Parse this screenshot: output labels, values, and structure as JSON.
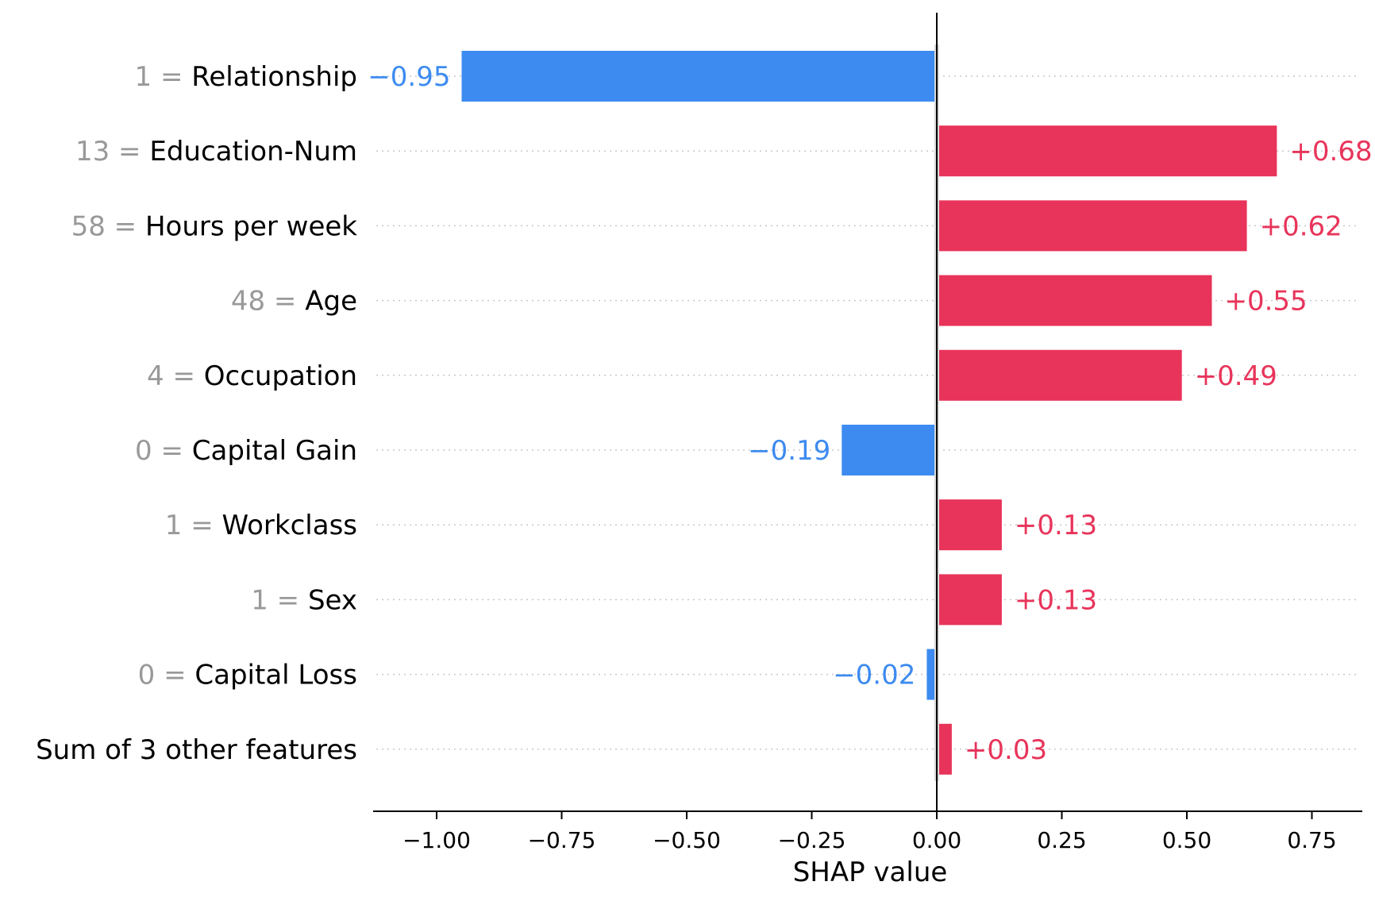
{
  "chart_data": {
    "type": "bar",
    "orientation": "horizontal",
    "xlabel": "SHAP value",
    "xlim": [
      -1.1,
      0.85
    ],
    "xticks": [
      -1.0,
      -0.75,
      -0.5,
      -0.25,
      0.0,
      0.25,
      0.5,
      0.75
    ],
    "xtick_labels": [
      "−1.00",
      "−0.75",
      "−0.50",
      "−0.25",
      "0.00",
      "0.25",
      "0.50",
      "0.75"
    ],
    "grid": "dotted horizontal guides per row",
    "colors": {
      "positive": "#e8345a",
      "negative": "#3d8bf0",
      "feature_value": "#999999"
    },
    "features": [
      {
        "value": "1",
        "name": "Relationship",
        "shap": -0.95,
        "label": "−0.95"
      },
      {
        "value": "13",
        "name": "Education-Num",
        "shap": 0.68,
        "label": "+0.68"
      },
      {
        "value": "58",
        "name": "Hours per week",
        "shap": 0.62,
        "label": "+0.62"
      },
      {
        "value": "48",
        "name": "Age",
        "shap": 0.55,
        "label": "+0.55"
      },
      {
        "value": "4",
        "name": "Occupation",
        "shap": 0.49,
        "label": "+0.49"
      },
      {
        "value": "0",
        "name": "Capital Gain",
        "shap": -0.19,
        "label": "−0.19"
      },
      {
        "value": "1",
        "name": "Workclass",
        "shap": 0.13,
        "label": "+0.13"
      },
      {
        "value": "1",
        "name": "Sex",
        "shap": 0.13,
        "label": "+0.13"
      },
      {
        "value": "0",
        "name": "Capital Loss",
        "shap": -0.02,
        "label": "−0.02"
      },
      {
        "value": "",
        "name": "Sum of 3 other features",
        "shap": 0.03,
        "label": "+0.03"
      }
    ]
  }
}
